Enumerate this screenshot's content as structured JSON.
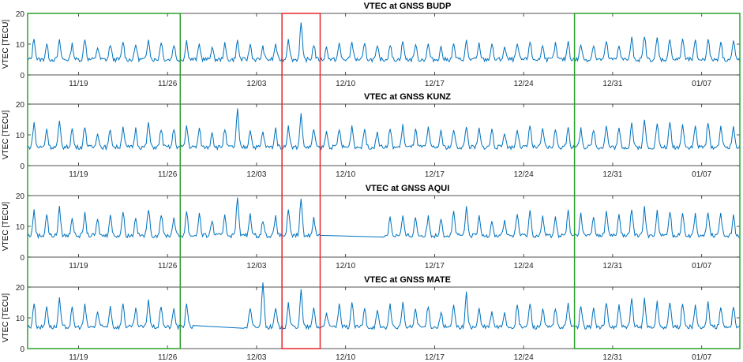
{
  "figure": {
    "ylabel": "VTEC [TECU]",
    "x_tick_labels": [
      "11/19",
      "11/26",
      "12/03",
      "12/10",
      "12/17",
      "12/24",
      "12/31",
      "01/07"
    ],
    "series_color": "#0072BD",
    "highlight_green_color": "#2ca02c",
    "highlight_red_color": "#e8262b"
  },
  "chart_data": [
    {
      "type": "line",
      "title": "VTEC at GNSS BUDP",
      "xlabel": "",
      "ylabel": "VTEC [TECU]",
      "xlim": [
        "2017-11-15",
        "2018-01-10"
      ],
      "ylim": [
        0,
        20
      ],
      "yticks": [
        0,
        10,
        20
      ],
      "grid": false,
      "daily_baseline_tecu": 5,
      "daily_peak_tecu": [
        12,
        10,
        11,
        10,
        12,
        9,
        10,
        11,
        10,
        12,
        11,
        10,
        11,
        10,
        9,
        10,
        11,
        10,
        9,
        10,
        12,
        17,
        10,
        9,
        10,
        11,
        10,
        9,
        10,
        11,
        10,
        10,
        9,
        10,
        11,
        10,
        10,
        9,
        10,
        11,
        10,
        10,
        11,
        10,
        10,
        11,
        10,
        12,
        13,
        12,
        12,
        12,
        11,
        12,
        11,
        11,
        12
      ],
      "gaps": []
    },
    {
      "type": "line",
      "title": "VTEC at GNSS KUNZ",
      "xlabel": "",
      "ylabel": "VTEC [TECU]",
      "xlim": [
        "2017-11-15",
        "2018-01-10"
      ],
      "ylim": [
        0,
        20
      ],
      "yticks": [
        0,
        10,
        20
      ],
      "grid": false,
      "daily_baseline_tecu": 6,
      "daily_peak_tecu": [
        14,
        12,
        14,
        12,
        13,
        11,
        12,
        13,
        12,
        14,
        12,
        12,
        13,
        12,
        11,
        12,
        18,
        12,
        11,
        12,
        13,
        17,
        12,
        11,
        12,
        13,
        12,
        11,
        12,
        13,
        12,
        12,
        11,
        12,
        13,
        12,
        12,
        11,
        12,
        13,
        12,
        12,
        13,
        12,
        12,
        13,
        12,
        14,
        15,
        14,
        14,
        14,
        13,
        14,
        13,
        13,
        14
      ],
      "gaps": []
    },
    {
      "type": "line",
      "title": "VTEC at GNSS AQUI",
      "xlabel": "",
      "ylabel": "VTEC [TECU]",
      "xlim": [
        "2017-11-15",
        "2018-01-10"
      ],
      "ylim": [
        0,
        20
      ],
      "yticks": [
        0,
        10,
        20
      ],
      "grid": false,
      "daily_baseline_tecu": 7,
      "daily_peak_tecu": [
        15,
        14,
        16,
        13,
        14,
        12,
        14,
        15,
        13,
        16,
        14,
        13,
        15,
        14,
        12,
        14,
        20,
        14,
        12,
        13,
        15,
        19,
        13,
        0,
        0,
        0,
        0,
        0,
        0,
        0,
        0,
        0,
        0,
        15,
        16,
        13,
        12,
        12,
        14,
        15,
        13,
        13,
        15,
        14,
        13,
        15,
        14,
        16,
        16,
        15,
        15,
        15,
        14,
        15,
        14,
        14,
        15
      ],
      "gaps": [
        [
          "2017-12-08",
          "2017-12-13"
        ]
      ]
    },
    {
      "type": "line",
      "title": "VTEC at GNSS MATE",
      "xlabel": "",
      "ylabel": "VTEC [TECU]",
      "xlim": [
        "2017-11-15",
        "2018-01-10"
      ],
      "ylim": [
        0,
        20
      ],
      "yticks": [
        0,
        10,
        20
      ],
      "grid": false,
      "daily_baseline_tecu": 7,
      "daily_peak_tecu": [
        15,
        14,
        16,
        13,
        14,
        12,
        14,
        15,
        13,
        16,
        14,
        13,
        15,
        14,
        0,
        0,
        0,
        0,
        22,
        13,
        15,
        19,
        13,
        12,
        14,
        15,
        13,
        12,
        14,
        15,
        13,
        14,
        12,
        14,
        18,
        13,
        12,
        12,
        14,
        15,
        13,
        13,
        15,
        14,
        13,
        15,
        14,
        16,
        16,
        15,
        15,
        15,
        14,
        15,
        14,
        14,
        15
      ],
      "gaps": [
        [
          "2017-11-28",
          "2017-12-02"
        ]
      ]
    }
  ],
  "highlights": [
    {
      "color": "green",
      "from": "2017-11-15",
      "to": "2017-11-27"
    },
    {
      "color": "red",
      "from": "2017-12-05",
      "to": "2017-12-08"
    },
    {
      "color": "green",
      "from": "2017-12-28",
      "to": "2018-01-10"
    }
  ]
}
